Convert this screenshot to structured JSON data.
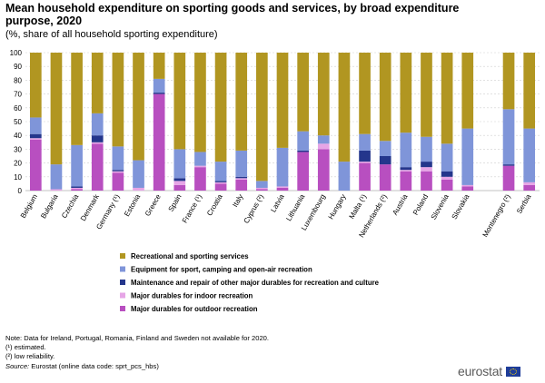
{
  "title": "Mean household expenditure on sporting goods and services, by broad expenditure purpose, 2020",
  "subtitle": "(%, share of all household sporting expenditure)",
  "notes": {
    "line1": "Note: Data for Ireland, Portugal, Romania, Finland and Sweden not available for 2020.",
    "line2": "(¹) estimated.",
    "line3": "(²) low reliability.",
    "source_label": "Source:",
    "source_text": " Eurostat (online data code: sprt_pcs_hbs)"
  },
  "logo": {
    "text": "eurostat",
    "icon": "eu-flag-icon"
  },
  "chart_data": {
    "type": "bar",
    "stacked": true,
    "ylim": [
      0,
      100
    ],
    "yticks": [
      0,
      10,
      20,
      30,
      40,
      50,
      60,
      70,
      80,
      90,
      100
    ],
    "grid": true,
    "legend_position": "bottom",
    "categories": [
      "Belgium",
      "Bulgaria",
      "Czechia",
      "Denmark",
      "Germany (¹)",
      "Estonia",
      "Greece",
      "Spain",
      "France (¹)",
      "Croatia",
      "Italy",
      "Cyprus (²)",
      "Latvia",
      "Lithuania",
      "Luxembourg",
      "Hungary",
      "Malta (¹)",
      "Netherlands (²)",
      "Austria",
      "Poland",
      "Slovenia",
      "Slovakia",
      "",
      "Montenegro (²)",
      "Serbia"
    ],
    "series": [
      {
        "name": "Major durables for outdoor recreation",
        "color": "#b84fc0",
        "values": [
          37,
          0,
          1,
          34,
          13,
          0,
          70,
          4,
          17,
          5,
          8,
          1,
          2,
          28,
          30,
          0,
          20,
          19,
          14,
          14,
          8,
          3,
          null,
          18,
          4
        ]
      },
      {
        "name": "Major durables for indoor recreation",
        "color": "#e6a5e6",
        "values": [
          1,
          1,
          1,
          1,
          1,
          2,
          0,
          3,
          1,
          1,
          1,
          1,
          1,
          0,
          4,
          0,
          1,
          0,
          1,
          3,
          2,
          1,
          null,
          0,
          2
        ]
      },
      {
        "name": "Maintenance and repair of other major durables for recreation and culture",
        "color": "#24368c",
        "values": [
          3,
          0,
          1,
          5,
          1,
          0,
          1,
          2,
          0,
          1,
          1,
          0,
          0,
          1,
          0,
          0,
          8,
          6,
          2,
          4,
          4,
          0,
          null,
          1,
          0
        ]
      },
      {
        "name": "Equipment for sport, camping and open-air recreation",
        "color": "#7f95d9",
        "values": [
          12,
          18,
          30,
          16,
          17,
          20,
          10,
          21,
          10,
          14,
          19,
          5,
          28,
          14,
          6,
          21,
          12,
          11,
          25,
          18,
          20,
          41,
          null,
          40,
          39
        ]
      },
      {
        "name": "Recreational and sporting services",
        "color": "#b19621",
        "values": [
          47,
          81,
          67,
          44,
          68,
          78,
          19,
          70,
          72,
          79,
          71,
          93,
          69,
          57,
          60,
          79,
          59,
          64,
          58,
          61,
          66,
          55,
          null,
          41,
          55
        ]
      }
    ]
  }
}
